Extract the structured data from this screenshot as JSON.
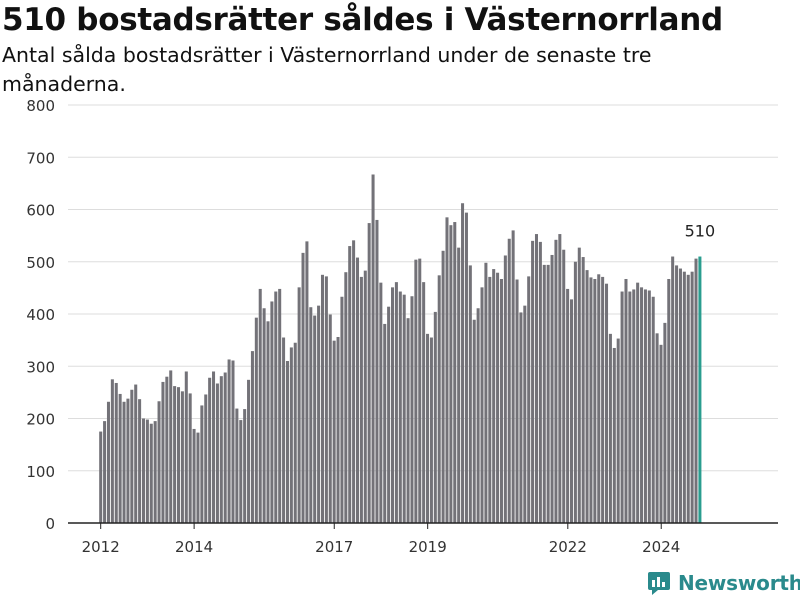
{
  "header": {
    "title": "510 bostadsrätter såldes i Västernorrland",
    "subtitle": "Antal sålda bostadsrätter i Västernorrland under de senaste tre månaderna."
  },
  "brand": {
    "name": "Newsworthy",
    "logo_icon": "bar-chart-logo-icon",
    "color": "#2a8a8c"
  },
  "colors": {
    "bar": "#737278",
    "highlight": "#2a9d8f",
    "grid": "#dddddd",
    "axis": "#222222"
  },
  "chart_data": {
    "type": "bar",
    "title": "510 bostadsrätter såldes i Västernorrland",
    "subtitle": "Antal sålda bostadsrätter i Västernorrland under de senaste tre månaderna.",
    "xlabel": "",
    "ylabel": "",
    "ylim": [
      0,
      800
    ],
    "yticks": [
      0,
      100,
      200,
      300,
      400,
      500,
      600,
      700,
      800
    ],
    "grid": true,
    "x_range": [
      2011.3,
      2026.5
    ],
    "xticks": [
      {
        "value": 2012,
        "label": "2012"
      },
      {
        "value": 2014,
        "label": "2014"
      },
      {
        "value": 2017,
        "label": "2017"
      },
      {
        "value": 2019,
        "label": "2019"
      },
      {
        "value": 2022,
        "label": "2022"
      },
      {
        "value": 2024,
        "label": "2024"
      }
    ],
    "start": 2012.0,
    "step": 0.0833,
    "values": [
      175,
      195,
      232,
      275,
      268,
      247,
      232,
      238,
      255,
      265,
      237,
      200,
      198,
      190,
      195,
      233,
      270,
      280,
      292,
      262,
      260,
      252,
      290,
      248,
      180,
      173,
      225,
      246,
      278,
      290,
      267,
      281,
      288,
      313,
      311,
      219,
      197,
      218,
      274,
      329,
      393,
      448,
      411,
      386,
      424,
      443,
      448,
      355,
      310,
      336,
      345,
      451,
      517,
      539,
      413,
      397,
      416,
      475,
      472,
      399,
      349,
      356,
      433,
      480,
      530,
      541,
      508,
      471,
      483,
      574,
      667,
      580,
      460,
      381,
      414,
      451,
      461,
      443,
      437,
      392,
      434,
      504,
      506,
      461,
      362,
      355,
      404,
      474,
      521,
      585,
      570,
      576,
      527,
      612,
      594,
      493,
      389,
      411,
      451,
      498,
      471,
      486,
      479,
      467,
      512,
      544,
      560,
      466,
      403,
      416,
      472,
      540,
      553,
      538,
      494,
      494,
      513,
      542,
      553,
      523,
      448,
      428,
      500,
      527,
      509,
      484,
      470,
      467,
      476,
      471,
      458,
      362,
      335,
      353,
      443,
      467,
      443,
      447,
      460,
      451,
      447,
      445,
      433,
      363,
      341,
      383,
      467,
      510,
      493,
      487,
      481,
      475,
      481,
      506,
      510
    ],
    "highlight_index": 154,
    "annotations": [
      {
        "text": "510",
        "index": 154
      }
    ]
  }
}
